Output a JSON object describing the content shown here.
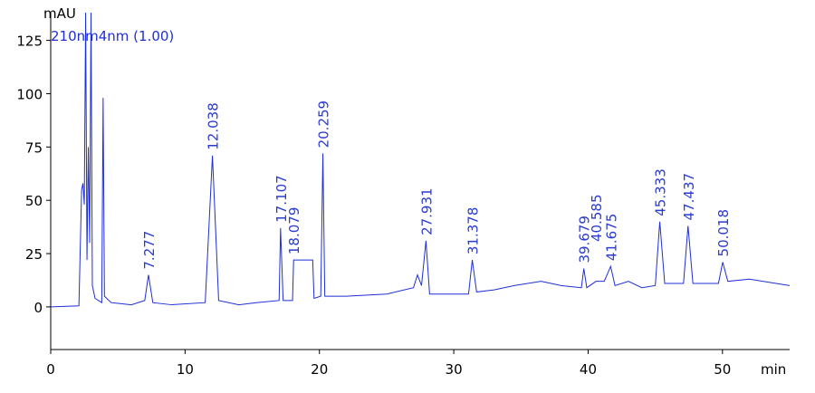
{
  "chart_data": {
    "type": "line",
    "ylabel": "mAU",
    "xlabel": "min",
    "xlim": [
      0,
      55
    ],
    "ylim": [
      -20,
      138
    ],
    "xticks": [
      0,
      10,
      20,
      30,
      40,
      50
    ],
    "yticks": [
      0,
      25,
      50,
      75,
      100,
      125
    ],
    "series": [
      {
        "name": "210nm4nm (1.00)",
        "color": "#1f2fd6",
        "x": [
          0,
          2.1,
          2.3,
          2.4,
          2.5,
          2.6,
          2.7,
          2.8,
          2.9,
          3.0,
          3.1,
          3.3,
          3.8,
          3.9,
          4.0,
          4.5,
          6,
          7.0,
          7.277,
          7.6,
          9,
          11.5,
          12.038,
          12.5,
          14,
          15.3,
          17.0,
          17.107,
          17.3,
          18.0,
          18.079,
          19.5,
          19.6,
          20.1,
          20.259,
          20.4,
          22,
          25,
          27,
          27.3,
          27.6,
          27.931,
          28.2,
          31.1,
          31.378,
          31.7,
          33,
          34.5,
          36.5,
          38,
          39.5,
          39.679,
          39.9,
          40.585,
          41.2,
          41.675,
          42,
          43,
          44,
          45.0,
          45.333,
          45.7,
          47.1,
          47.437,
          47.8,
          49.7,
          50.018,
          50.4,
          52,
          55
        ],
        "values": [
          0,
          0.5,
          55,
          58,
          48,
          138,
          22,
          75,
          30,
          138,
          10,
          4,
          2,
          98,
          5,
          2,
          1,
          3,
          15,
          2,
          1,
          2,
          71,
          3,
          1,
          2,
          3,
          37,
          3,
          3,
          22,
          22,
          4,
          5,
          72,
          5,
          5,
          6,
          9,
          15,
          10,
          31,
          6,
          6,
          22,
          7,
          8,
          10,
          12,
          10,
          9,
          18,
          9,
          12,
          12,
          19,
          10,
          12,
          9,
          10,
          40,
          11,
          11,
          38,
          11,
          11,
          21,
          12,
          13,
          10
        ]
      }
    ],
    "annotations": [
      {
        "x": 7.277,
        "y": 15
      },
      {
        "x": 12.038,
        "y": 71
      },
      {
        "x": 17.107,
        "y": 37
      },
      {
        "x": 18.079,
        "y": 22
      },
      {
        "x": 20.259,
        "y": 72
      },
      {
        "x": 27.931,
        "y": 31
      },
      {
        "x": 31.378,
        "y": 22
      },
      {
        "x": 39.679,
        "y": 18
      },
      {
        "x": 40.585,
        "y": 28
      },
      {
        "x": 41.675,
        "y": 19
      },
      {
        "x": 45.333,
        "y": 40
      },
      {
        "x": 47.437,
        "y": 38
      },
      {
        "x": 50.018,
        "y": 21
      }
    ]
  }
}
